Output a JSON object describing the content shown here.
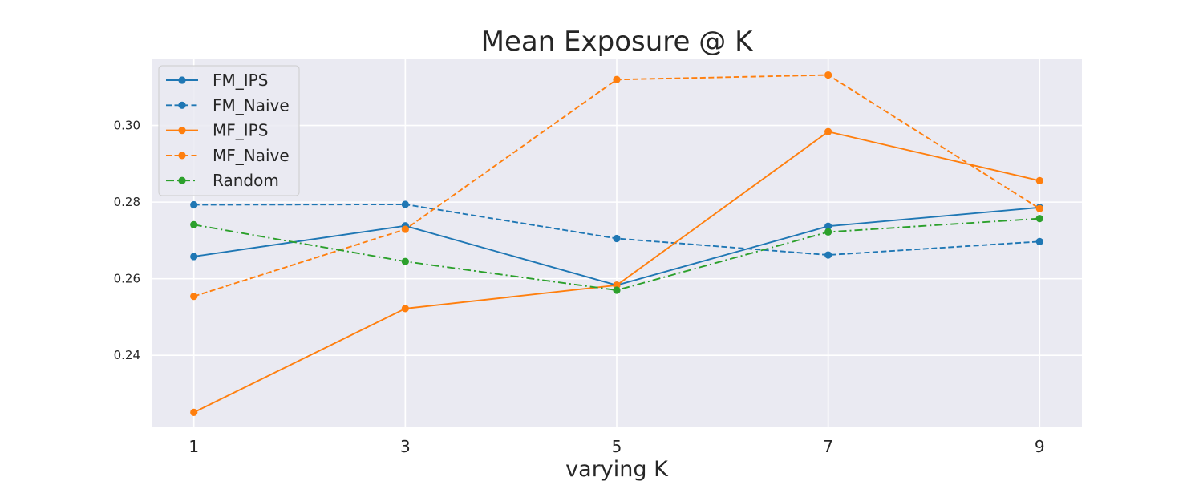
{
  "chart_data": {
    "type": "line",
    "title": "Mean Exposure @ K",
    "xlabel": "varying K",
    "ylabel": "",
    "x": [
      1,
      3,
      5,
      7,
      9
    ],
    "xticks": [
      "1",
      "3",
      "5",
      "7",
      "9"
    ],
    "yticks": [
      "0.24",
      "0.26",
      "0.28",
      "0.30"
    ],
    "xlim": [
      0.6,
      9.4
    ],
    "ylim": [
      0.2212,
      0.3175
    ],
    "grid": true,
    "legend_position": "top-left",
    "series": [
      {
        "name": "FM_IPS",
        "values": [
          0.2658,
          0.2738,
          0.2583,
          0.2737,
          0.2786
        ],
        "color": "#1f77b4",
        "dash": "solid"
      },
      {
        "name": "FM_Naive",
        "values": [
          0.2793,
          0.2794,
          0.2705,
          0.2662,
          0.2697
        ],
        "color": "#1f77b4",
        "dash": "dashed"
      },
      {
        "name": "MF_IPS",
        "values": [
          0.2251,
          0.2522,
          0.2583,
          0.2984,
          0.2856
        ],
        "color": "#ff7f0e",
        "dash": "solid"
      },
      {
        "name": "MF_Naive",
        "values": [
          0.2554,
          0.2729,
          0.312,
          0.3132,
          0.2783
        ],
        "color": "#ff7f0e",
        "dash": "dashed"
      },
      {
        "name": "Random",
        "values": [
          0.2741,
          0.2645,
          0.257,
          0.2722,
          0.2757
        ],
        "color": "#2ca02c",
        "dash": "dashdot"
      }
    ]
  }
}
